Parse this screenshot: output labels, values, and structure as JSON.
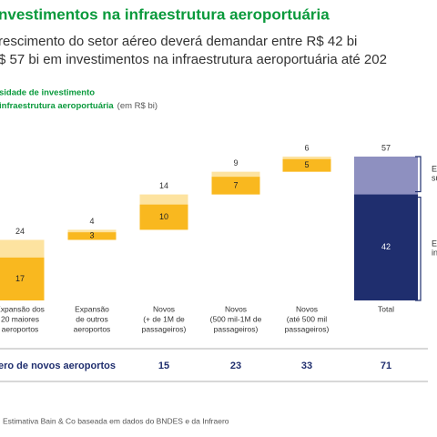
{
  "chart_data": {
    "type": "waterfall",
    "title": "nvestimentos na infraestrutura aeroportuária",
    "subtitle_lines": [
      "rescimento do setor aéreo deverá demandar entre R$ 42 bi",
      "$ 57 bi em investimentos na infraestrutura aeroportuária até 202"
    ],
    "chart_heading": [
      "sidade de investimento",
      "infraestrutura aeroportuária"
    ],
    "unit": "(em R$ bi)",
    "categories": [
      [
        "Expansão dos",
        "20 maiores",
        "aeroportos"
      ],
      [
        "Expansão",
        "de outros",
        "aeroportos"
      ],
      [
        "Novos",
        "(+ de 1M de",
        "passageiros)"
      ],
      [
        "Novos",
        "(500 mil-1M de",
        "passageiros)"
      ],
      [
        "Novos",
        "(até 500 mil",
        "passageiros)"
      ],
      [
        "Total"
      ]
    ],
    "values": [
      24,
      4,
      14,
      9,
      6,
      57
    ],
    "inner_values": [
      17,
      3,
      10,
      7,
      5,
      42
    ],
    "colors": {
      "outer": "#fde3a0",
      "inner": "#f9b81f",
      "total_outer": "#8e90c0",
      "total_inner": "#1f2e6e"
    },
    "new_airports": {
      "label": "ero de novos aeroportos",
      "values": [
        null,
        null,
        15,
        23,
        33,
        71
      ]
    },
    "brackets": [
      [
        "E",
        "su"
      ],
      [
        "E",
        "in"
      ]
    ],
    "source": "Estimativa Bain & Co baseada em dados do BNDES e da Infraero"
  }
}
